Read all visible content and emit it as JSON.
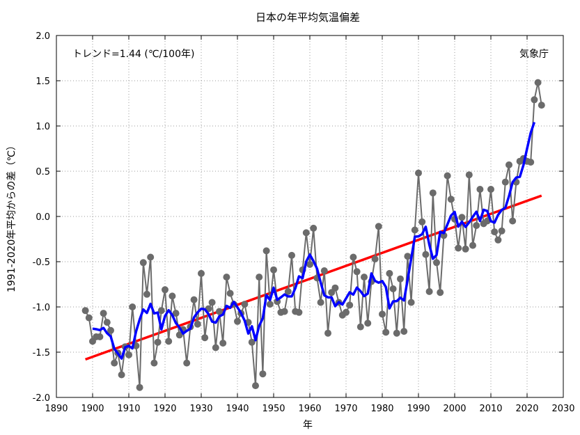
{
  "chart_data": {
    "type": "line",
    "title": "日本の年平均気温偏差",
    "xlabel": "年",
    "ylabel": "1991-2020年平均からの差（℃）",
    "xlim": [
      1890,
      2030
    ],
    "ylim": [
      -2.0,
      2.0
    ],
    "xticks": [
      1890,
      1900,
      1910,
      1920,
      1930,
      1940,
      1950,
      1960,
      1970,
      1980,
      1990,
      2000,
      2010,
      2020,
      2030
    ],
    "yticks": [
      "-2.0",
      "-1.5",
      "-1.0",
      "-0.5",
      "0.0",
      "0.5",
      "1.0",
      "1.5",
      "2.0"
    ],
    "grid": true,
    "trend_label": "トレンド=1.44 (℃/100年)",
    "source_label": "気象庁",
    "annual": {
      "start_year": 1898,
      "color": "#6b6b6b",
      "values": [
        -1.04,
        -1.12,
        -1.38,
        -1.33,
        -1.33,
        -1.07,
        -1.17,
        -1.26,
        -1.62,
        -1.51,
        -1.75,
        -1.44,
        -1.53,
        -1.0,
        -1.43,
        -1.89,
        -0.51,
        -0.86,
        -0.45,
        -1.62,
        -1.39,
        -1.04,
        -0.81,
        -1.38,
        -0.88,
        -1.07,
        -1.31,
        -1.25,
        -1.62,
        -1.22,
        -0.92,
        -1.19,
        -0.63,
        -1.34,
        -1.02,
        -0.95,
        -1.45,
        -1.05,
        -1.4,
        -0.67,
        -0.85,
        -0.97,
        -1.16,
        -1.07,
        -0.97,
        -1.17,
        -1.39,
        -1.87,
        -0.67,
        -1.74,
        -0.38,
        -0.97,
        -0.59,
        -0.94,
        -1.06,
        -1.05,
        -0.83,
        -0.43,
        -1.05,
        -1.06,
        -0.59,
        -0.18,
        -0.53,
        -0.13,
        -0.68,
        -0.95,
        -0.6,
        -1.29,
        -0.84,
        -0.79,
        -0.95,
        -1.09,
        -1.06,
        -0.98,
        -0.45,
        -0.61,
        -1.22,
        -0.67,
        -1.18,
        -0.72,
        -0.47,
        -0.11,
        -1.08,
        -1.28,
        -0.63,
        -0.8,
        -1.29,
        -0.69,
        -1.27,
        -0.44,
        -0.95,
        -0.15,
        0.48,
        -0.06,
        -0.42,
        -0.83,
        0.26,
        -0.51,
        -0.84,
        -0.21,
        0.45,
        0.19,
        -0.03,
        -0.35,
        -0.01,
        -0.36,
        0.46,
        -0.32,
        -0.1,
        0.3,
        -0.08,
        -0.05,
        0.3,
        -0.17,
        -0.26,
        -0.16,
        0.38,
        0.57,
        -0.05,
        0.38,
        0.61,
        0.64,
        0.61,
        0.6,
        1.29,
        1.48,
        1.23
      ]
    },
    "running_mean": {
      "window_years": 5,
      "color": "#0000ff"
    },
    "trend": {
      "slope_per_100y": 1.44,
      "start": [
        1898,
        -1.58
      ],
      "end": [
        2024,
        0.23
      ],
      "color": "#ff0000"
    }
  }
}
